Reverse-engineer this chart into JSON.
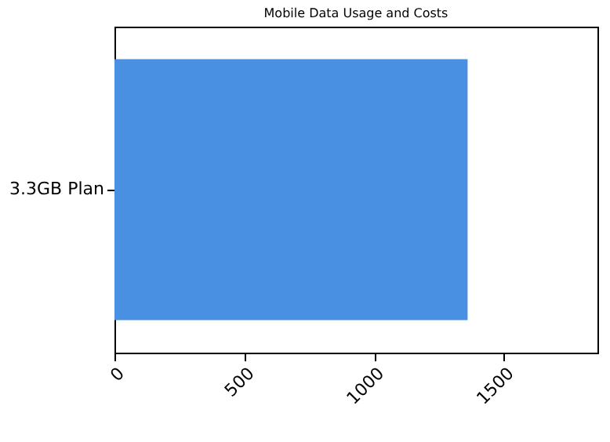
{
  "chart_data": {
    "type": "bar",
    "orientation": "horizontal",
    "title": "Mobile Data Usage and Costs",
    "categories": [
      "3.3GB Plan"
    ],
    "values": [
      1360
    ],
    "color": "#4a90e2",
    "xlim": [
      0,
      1860
    ],
    "xticks": [
      0,
      500,
      1000,
      1500
    ],
    "grid": false
  }
}
